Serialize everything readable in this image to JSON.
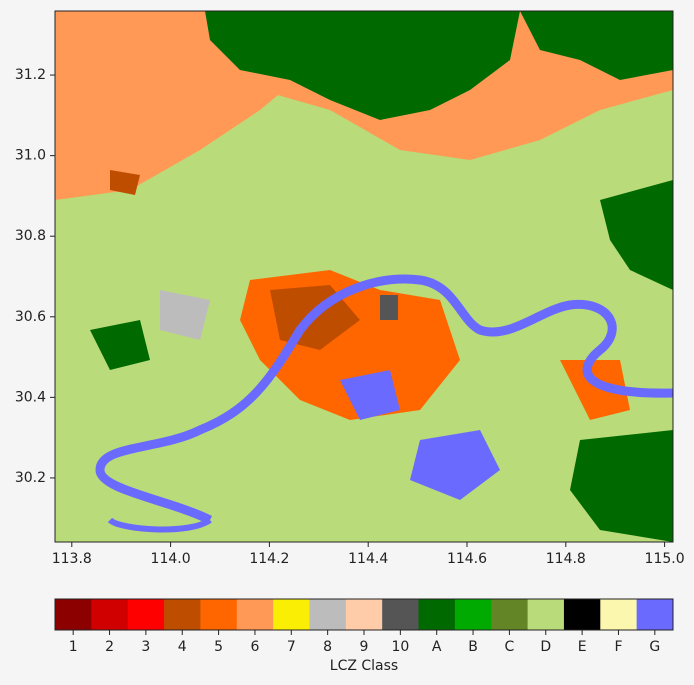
{
  "chart_data": {
    "type": "map",
    "xlim": [
      113.766,
      115.017
    ],
    "ylim": [
      30.041,
      31.359
    ],
    "xticks": [
      {
        "value": 113.8,
        "label": "113.8"
      },
      {
        "value": 114.0,
        "label": "114.0"
      },
      {
        "value": 114.2,
        "label": "114.2"
      },
      {
        "value": 114.4,
        "label": "114.4"
      },
      {
        "value": 114.6,
        "label": "114.6"
      },
      {
        "value": 114.8,
        "label": "114.8"
      },
      {
        "value": 115.0,
        "label": "115.0"
      }
    ],
    "yticks": [
      {
        "value": 30.2,
        "label": "30.2"
      },
      {
        "value": 30.4,
        "label": "30.4"
      },
      {
        "value": 30.6,
        "label": "30.6"
      },
      {
        "value": 30.8,
        "label": "30.8"
      },
      {
        "value": 31.0,
        "label": "31.0"
      },
      {
        "value": 31.2,
        "label": "31.2"
      }
    ],
    "colorbar": {
      "label": "LCZ Class",
      "categories": [
        "1",
        "2",
        "3",
        "4",
        "5",
        "6",
        "7",
        "8",
        "9",
        "10",
        "A",
        "B",
        "C",
        "D",
        "E",
        "F",
        "G"
      ],
      "colors": [
        "#8c0000",
        "#d10000",
        "#ff0000",
        "#bf4d00",
        "#ff6600",
        "#ff9955",
        "#faee05",
        "#bcbcbc",
        "#ffccaa",
        "#555555",
        "#006a00",
        "#00aa00",
        "#648525",
        "#b9db79",
        "#000000",
        "#fbf7ae",
        "#6a6aff"
      ]
    }
  }
}
